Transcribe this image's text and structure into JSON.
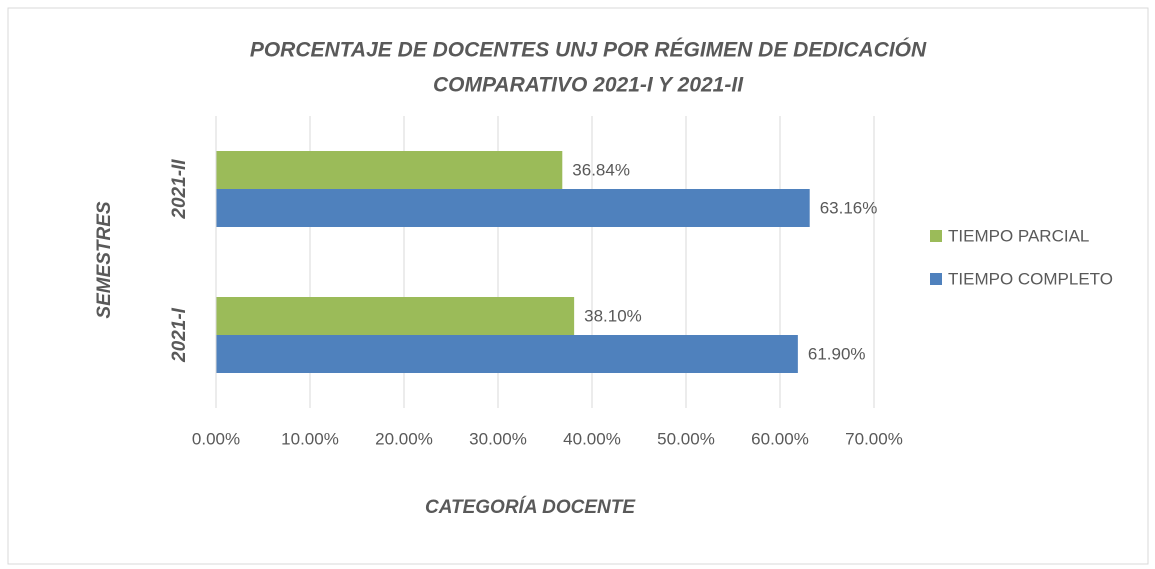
{
  "chart_data": {
    "type": "bar",
    "orientation": "horizontal",
    "title": [
      "PORCENTAJE DE DOCENTES UNJ POR RÉGIMEN DE DEDICACIÓN",
      "COMPARATIVO 2021-I Y 2021-II"
    ],
    "x_label": "CATEGORÍA DOCENTE",
    "y_label": "SEMESTRES",
    "categories": [
      "2021-I",
      "2021-II"
    ],
    "series": [
      {
        "name": "TIEMPO PARCIAL",
        "color": "#9bbb59",
        "values": [
          38.1,
          36.84
        ],
        "value_labels": [
          "38.10%",
          "36.84%"
        ]
      },
      {
        "name": "TIEMPO COMPLETO",
        "color": "#4f81bd",
        "values": [
          61.9,
          63.16
        ],
        "value_labels": [
          "61.90%",
          "63.16%"
        ]
      }
    ],
    "xlim": [
      0,
      70
    ],
    "xticks": [
      {
        "value": 0,
        "label": "0.00%"
      },
      {
        "value": 10,
        "label": "10.00%"
      },
      {
        "value": 20,
        "label": "20.00%"
      },
      {
        "value": 30,
        "label": "30.00%"
      },
      {
        "value": 40,
        "label": "40.00%"
      },
      {
        "value": 50,
        "label": "50.00%"
      },
      {
        "value": 60,
        "label": "60.00%"
      },
      {
        "value": 70,
        "label": "70.00%"
      }
    ],
    "grid": true,
    "legend": "right"
  }
}
